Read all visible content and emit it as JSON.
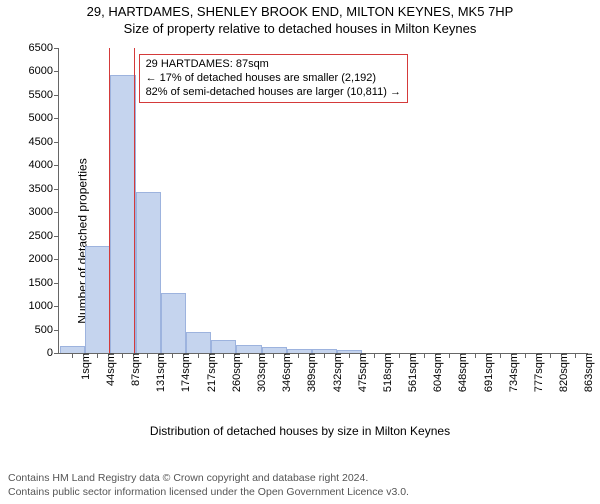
{
  "titles": {
    "line1": "29, HARTDAMES, SHENLEY BROOK END, MILTON KEYNES, MK5 7HP",
    "line2": "Size of property relative to detached houses in Milton Keynes"
  },
  "axes": {
    "ylabel": "Number of detached properties",
    "xlabel": "Distribution of detached houses by size in Milton Keynes",
    "ylim": [
      0,
      6500
    ],
    "ytick_step": 500,
    "yticks": [
      0,
      500,
      1000,
      1500,
      2000,
      2500,
      3000,
      3500,
      4000,
      4500,
      5000,
      5500,
      6000,
      6500
    ],
    "xticks": [
      "1sqm",
      "44sqm",
      "87sqm",
      "131sqm",
      "174sqm",
      "217sqm",
      "260sqm",
      "303sqm",
      "346sqm",
      "389sqm",
      "432sqm",
      "475sqm",
      "518sqm",
      "561sqm",
      "604sqm",
      "648sqm",
      "691sqm",
      "734sqm",
      "777sqm",
      "820sqm",
      "863sqm"
    ]
  },
  "chart": {
    "type": "bar",
    "bar_color": "#c5d4ee",
    "bar_border": "#9db3de",
    "highlight_border": "#d43a3a",
    "highlight_index": 2,
    "background_color": "#ffffff",
    "values": [
      120,
      2250,
      5900,
      3400,
      1250,
      430,
      260,
      150,
      100,
      70,
      60,
      40,
      0,
      0,
      0,
      0,
      0,
      0,
      0,
      0,
      0
    ]
  },
  "annotation": {
    "line1": "29 HARTDAMES: 87sqm",
    "line2": "← 17% of detached houses are smaller (2,192)",
    "line3": "82% of semi-detached houses are larger (10,811) →",
    "border_color": "#d43a3a"
  },
  "footer": {
    "line1": "Contains HM Land Registry data © Crown copyright and database right 2024.",
    "line2": "Contains public sector information licensed under the Open Government Licence v3.0."
  }
}
